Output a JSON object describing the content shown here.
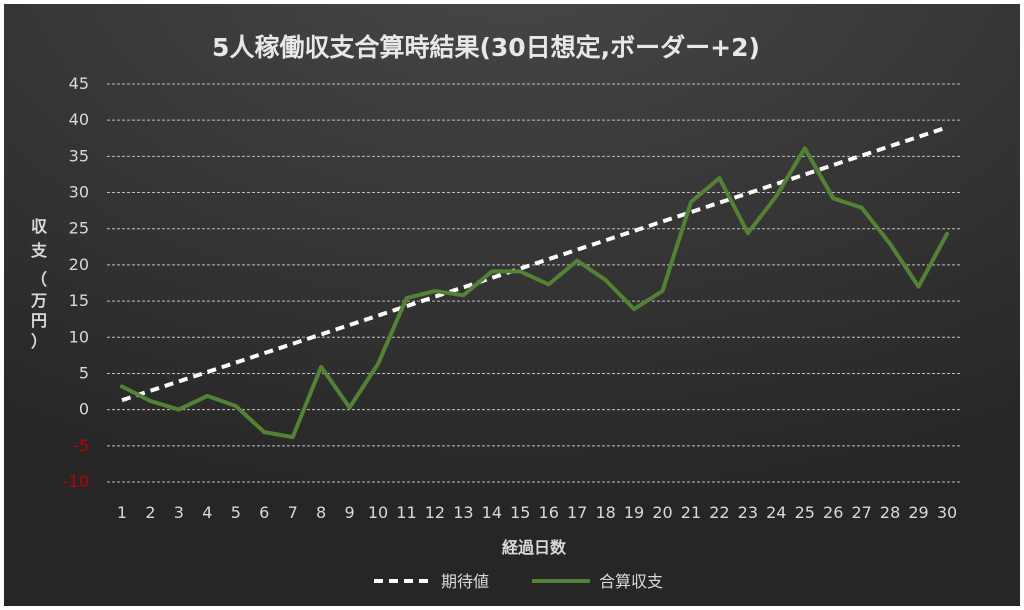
{
  "colors": {
    "background": "#262626",
    "gradient_top": "#484848",
    "grid": "#bfbfbf",
    "tick_text": "#d9d9d9",
    "negative_tick_text": "#c00000",
    "expected_line": "#ffffff",
    "actual_line": "#548235",
    "title": "#e8e8e8"
  },
  "chart_data": {
    "type": "line",
    "title": "5人稼働収支合算時結果(30日想定,ボーダー+2)",
    "xlabel": "経過日数",
    "ylabel_lines": [
      "収",
      "支",
      "（",
      "万",
      "円",
      "）"
    ],
    "ylim": [
      -10,
      45
    ],
    "y_step": 5,
    "grid": true,
    "legend_position": "bottom",
    "x": [
      1,
      2,
      3,
      4,
      5,
      6,
      7,
      8,
      9,
      10,
      11,
      12,
      13,
      14,
      15,
      16,
      17,
      18,
      19,
      20,
      21,
      22,
      23,
      24,
      25,
      26,
      27,
      28,
      29,
      30
    ],
    "series": [
      {
        "name": "期待値",
        "style": "dashed",
        "color": "#ffffff",
        "values": [
          1.3,
          2.6,
          3.9,
          5.2,
          6.5,
          7.8,
          9.1,
          10.4,
          11.7,
          13.0,
          14.3,
          15.6,
          16.9,
          18.2,
          19.5,
          20.8,
          22.1,
          23.4,
          24.7,
          26.0,
          27.3,
          28.6,
          29.9,
          31.2,
          32.5,
          33.8,
          35.1,
          36.4,
          37.7,
          39.0
        ]
      },
      {
        "name": "合算収支",
        "style": "solid",
        "color": "#548235",
        "values": [
          3.2,
          1.2,
          0.0,
          1.9,
          0.5,
          -3.1,
          -3.8,
          5.9,
          0.3,
          6.3,
          15.4,
          16.4,
          15.8,
          19.1,
          19.1,
          17.3,
          20.6,
          17.9,
          13.9,
          16.4,
          28.7,
          32.0,
          24.4,
          29.5,
          36.1,
          29.2,
          27.9,
          22.9,
          17.0,
          24.3
        ]
      }
    ]
  }
}
